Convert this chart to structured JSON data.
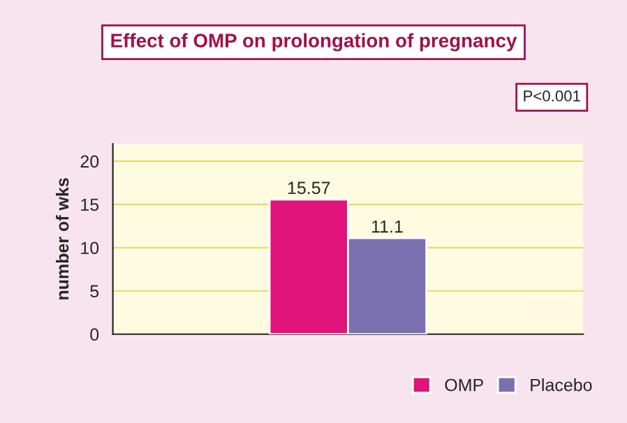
{
  "chart_data": {
    "type": "bar",
    "title": "Effect of OMP on prolongation of pregnancy",
    "ylabel": "number of wks",
    "categories": [
      null
    ],
    "series": [
      {
        "name": "OMP",
        "color": "#e0147a",
        "values": [
          15.57
        ]
      },
      {
        "name": "Placebo",
        "color": "#7a70b0",
        "values": [
          11.1
        ]
      }
    ],
    "ylim": [
      0,
      22
    ],
    "yticks": [
      0,
      5,
      10,
      15,
      20
    ],
    "grid": "y",
    "legend": "bottom right",
    "data_labels": true,
    "annotations": [
      "P<0.001"
    ]
  }
}
